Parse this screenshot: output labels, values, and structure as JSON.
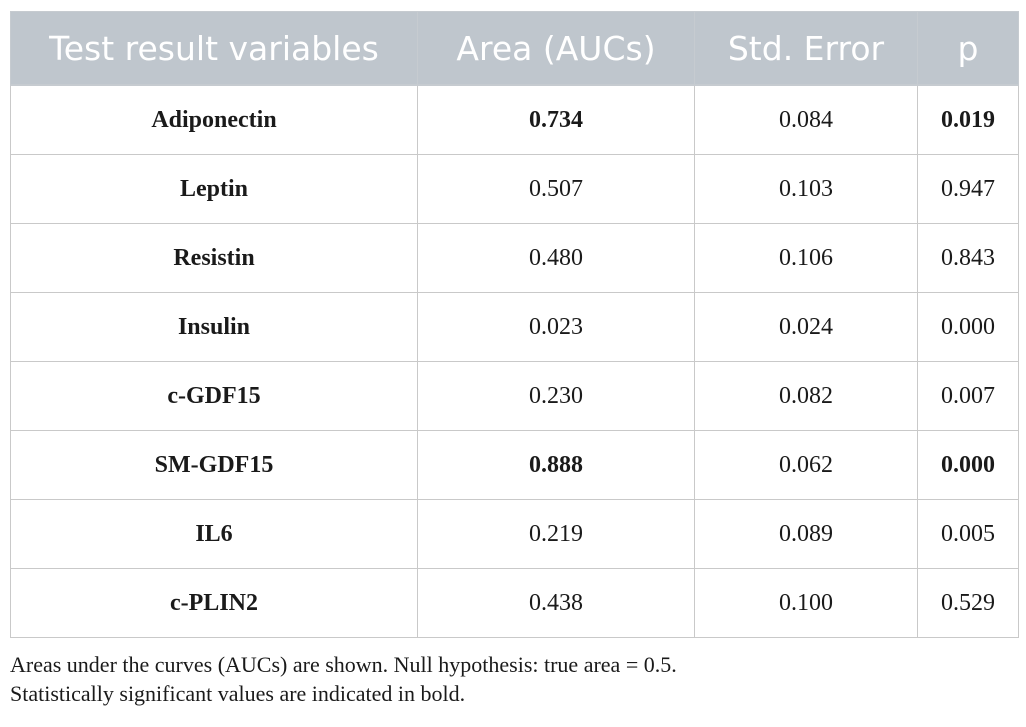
{
  "table": {
    "headers": [
      "Test result variables",
      "Area (AUCs)",
      "Std. Error",
      "p"
    ],
    "rows": [
      {
        "variable": "Adiponectin",
        "area": "0.734",
        "std_error": "0.084",
        "p": "0.019",
        "area_bold": true,
        "p_bold": true
      },
      {
        "variable": "Leptin",
        "area": "0.507",
        "std_error": "0.103",
        "p": "0.947",
        "area_bold": false,
        "p_bold": false
      },
      {
        "variable": "Resistin",
        "area": "0.480",
        "std_error": "0.106",
        "p": "0.843",
        "area_bold": false,
        "p_bold": false
      },
      {
        "variable": "Insulin",
        "area": "0.023",
        "std_error": "0.024",
        "p": "0.000",
        "area_bold": false,
        "p_bold": false
      },
      {
        "variable": "c-GDF15",
        "area": "0.230",
        "std_error": "0.082",
        "p": "0.007",
        "area_bold": false,
        "p_bold": false
      },
      {
        "variable": "SM-GDF15",
        "area": "0.888",
        "std_error": "0.062",
        "p": "0.000",
        "area_bold": true,
        "p_bold": true
      },
      {
        "variable": "IL6",
        "area": "0.219",
        "std_error": "0.089",
        "p": "0.005",
        "area_bold": false,
        "p_bold": false
      },
      {
        "variable": "c-PLIN2",
        "area": "0.438",
        "std_error": "0.100",
        "p": "0.529",
        "area_bold": false,
        "p_bold": false
      }
    ]
  },
  "footnote": {
    "line1": "Areas under the curves (AUCs) are shown. Null hypothesis: true area = 0.5.",
    "line2": "Statistically significant values are indicated in bold."
  }
}
